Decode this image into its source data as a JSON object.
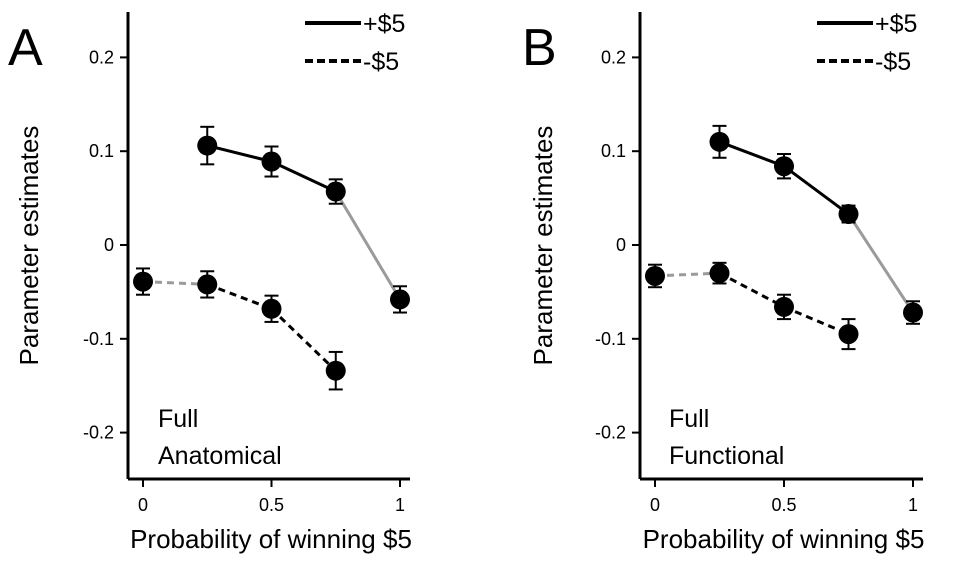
{
  "colors": {
    "data": "#000000",
    "extrapolated": "#9a9a9a",
    "axis": "#000000"
  },
  "legend": {
    "entries": [
      {
        "label": "+$5",
        "style": "solid"
      },
      {
        "label": "-$5",
        "style": "dashed"
      }
    ],
    "placement": "top-right"
  },
  "chart_data": [
    {
      "type": "line",
      "panel": "A",
      "xlabel": "Probability of winning $5",
      "ylabel": "Parameter estimates",
      "annotation": [
        "Full",
        "Anatomical"
      ],
      "xlim": [
        0,
        1
      ],
      "ylim": [
        -0.25,
        0.25
      ],
      "xticks": [
        0,
        0.5,
        1
      ],
      "xtick_labels": [
        "0",
        "0.5",
        "1"
      ],
      "yticks": [
        0.2,
        0.1,
        0,
        -0.1,
        -0.2
      ],
      "ytick_labels": [
        "0.2",
        "0.1",
        "0",
        "-0.1",
        "-0.2"
      ],
      "series": [
        {
          "name": "+$5",
          "style": "solid",
          "x": [
            0.25,
            0.5,
            0.75,
            1.0
          ],
          "y": [
            0.106,
            0.089,
            0.057,
            -0.058
          ],
          "err": [
            0.02,
            0.016,
            0.013,
            0.014
          ],
          "extrapolated_from_index": 2
        },
        {
          "name": "-$5",
          "style": "dashed",
          "x": [
            0.0,
            0.25,
            0.5,
            0.75
          ],
          "y": [
            -0.039,
            -0.042,
            -0.068,
            -0.134
          ],
          "err": [
            0.014,
            0.014,
            0.014,
            0.02
          ],
          "extrapolated_until_index": 1
        }
      ]
    },
    {
      "type": "line",
      "panel": "B",
      "xlabel": "Probability of winning $5",
      "ylabel": "Parameter estimates",
      "annotation": [
        "Full",
        "Functional"
      ],
      "xlim": [
        0,
        1
      ],
      "ylim": [
        -0.25,
        0.25
      ],
      "xticks": [
        0,
        0.5,
        1
      ],
      "xtick_labels": [
        "0",
        "0.5",
        "1"
      ],
      "yticks": [
        0.2,
        0.1,
        0,
        -0.1,
        -0.2
      ],
      "ytick_labels": [
        "0.2",
        "0.1",
        "0",
        "-0.1",
        "-0.2"
      ],
      "series": [
        {
          "name": "+$5",
          "style": "solid",
          "x": [
            0.25,
            0.5,
            0.75,
            1.0
          ],
          "y": [
            0.11,
            0.084,
            0.033,
            -0.072
          ],
          "err": [
            0.017,
            0.013,
            0.009,
            0.012
          ],
          "extrapolated_from_index": 2
        },
        {
          "name": "-$5",
          "style": "dashed",
          "x": [
            0.0,
            0.25,
            0.5,
            0.75
          ],
          "y": [
            -0.033,
            -0.03,
            -0.066,
            -0.095
          ],
          "err": [
            0.012,
            0.011,
            0.013,
            0.016
          ],
          "extrapolated_until_index": 1
        }
      ]
    }
  ]
}
